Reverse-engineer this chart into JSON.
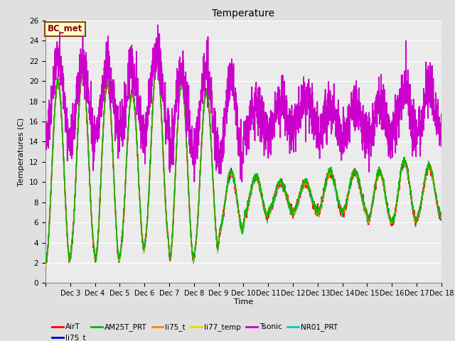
{
  "title": "Temperature",
  "ylabel": "Temperatures (C)",
  "xlabel": "Time",
  "ylim": [
    0,
    26
  ],
  "yticks": [
    0,
    2,
    4,
    6,
    8,
    10,
    12,
    14,
    16,
    18,
    20,
    22,
    24,
    26
  ],
  "annotation": "BC_met",
  "annotation_bbox": {
    "facecolor": "#FFFFCC",
    "edgecolor": "#8B4513",
    "boxstyle": "square,pad=0.3"
  },
  "annotation_color": "#8B0000",
  "background_color": "#E0E0E0",
  "plot_bg_color": "#EBEBEB",
  "grid_color": "white",
  "series": [
    {
      "label": "AirT",
      "color": "#FF0000",
      "lw": 1.0,
      "zorder": 4
    },
    {
      "label": "li75_t",
      "color": "#0000CC",
      "lw": 1.0,
      "zorder": 3
    },
    {
      "label": "AM25T_PRT",
      "color": "#00BB00",
      "lw": 1.0,
      "zorder": 5
    },
    {
      "label": "li75_t",
      "color": "#FF8800",
      "lw": 1.0,
      "zorder": 4
    },
    {
      "label": "li77_temp",
      "color": "#DDDD00",
      "lw": 1.0,
      "zorder": 3
    },
    {
      "label": "Tsonic",
      "color": "#CC00CC",
      "lw": 1.2,
      "zorder": 6
    },
    {
      "label": "NR01_PRT",
      "color": "#00CCCC",
      "lw": 1.0,
      "zorder": 2
    }
  ],
  "xticklabels": [
    "Dec 3",
    "Dec 4",
    "Dec 5",
    "Dec 6",
    "Dec 7",
    "Dec 8",
    "Dec 9",
    "Dec 10",
    "Dec 11",
    "Dec 12",
    "Dec 13",
    "Dec 14",
    "Dec 15",
    "Dec 16",
    "Dec 17",
    "Dec 18"
  ],
  "n_days": 16,
  "pts_per_day": 144
}
